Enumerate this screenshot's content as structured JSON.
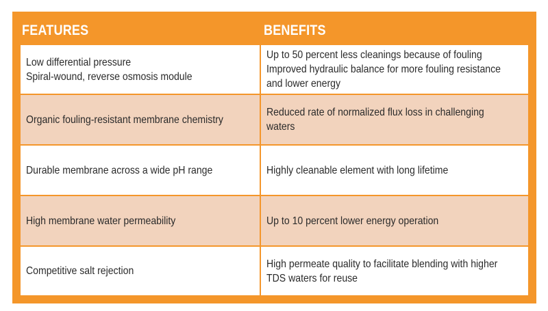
{
  "header": {
    "features": "FEATURES",
    "benefits": "BENEFITS"
  },
  "rows": [
    {
      "features": [
        "Low differential pressure",
        "Spiral-wound, reverse osmosis module"
      ],
      "benefits": [
        "Up to 50 percent less cleanings because of fouling",
        "Improved hydraulic balance for more fouling resistance",
        "and lower energy"
      ]
    },
    {
      "features": [
        "Organic fouling-resistant membrane chemistry"
      ],
      "benefits": [
        "Reduced rate of normalized flux loss in challenging",
        "waters"
      ]
    },
    {
      "features": [
        "Durable membrane across a wide pH range"
      ],
      "benefits": [
        "Highly cleanable element with long lifetime"
      ]
    },
    {
      "features": [
        "High membrane water permeability"
      ],
      "benefits": [
        "Up to 10 percent lower energy operation"
      ]
    },
    {
      "features": [
        "Competitive salt rejection"
      ],
      "benefits": [
        "High permeate quality to facilitate blending with higher",
        "TDS waters for reuse"
      ]
    }
  ],
  "colors": {
    "border_orange": "#f4962a",
    "row_tan": "#f2d3bd",
    "row_white": "#ffffff",
    "header_text": "#ffffff",
    "body_text": "#2a2a2a"
  }
}
